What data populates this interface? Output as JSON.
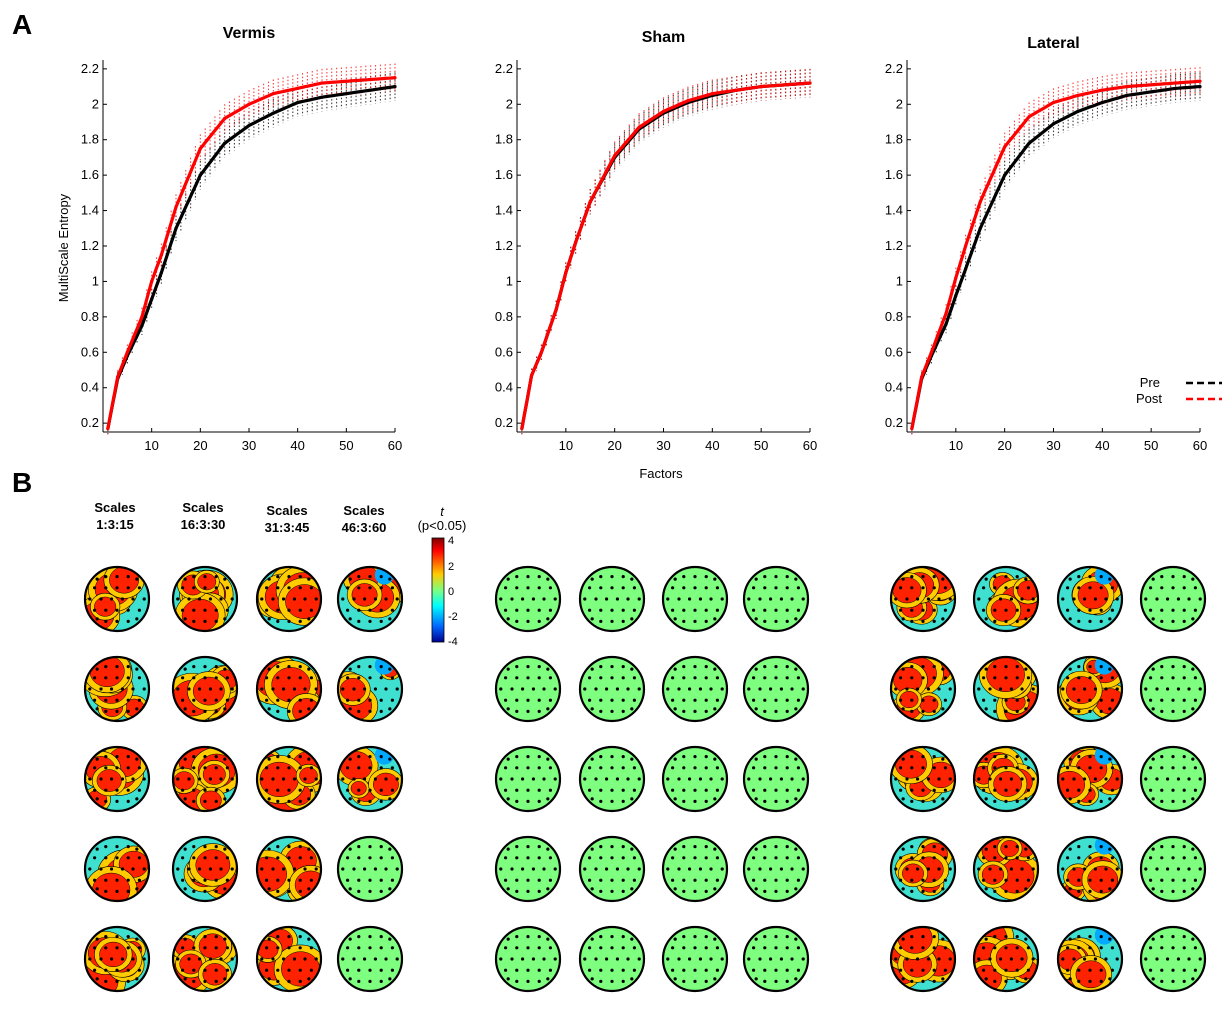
{
  "figure": {
    "panel_a_label": "A",
    "panel_b_label": "B",
    "xlabel": "Factors",
    "ylabel": "MultiScale Entropy",
    "x_ticks": [
      "10",
      "20",
      "30",
      "40",
      "50",
      "60"
    ],
    "y_ticks": [
      "0.2",
      "0.4",
      "0.6",
      "0.8",
      "1",
      "1.2",
      "1.4",
      "1.6",
      "1.8",
      "2",
      "2.2"
    ],
    "legend": {
      "pre": "Pre",
      "post": "Post"
    },
    "scale_headers": [
      {
        "line1": "Scales",
        "line2": "1:3:15"
      },
      {
        "line1": "Scales",
        "line2": "16:3:30"
      },
      {
        "line1": "Scales",
        "line2": "31:3:45"
      },
      {
        "line1": "Scales",
        "line2": "46:3:60"
      }
    ],
    "colorbar": {
      "title": "t",
      "subtitle": "(p<0.05)",
      "ticks": [
        "4",
        "2",
        "0",
        "-2",
        "-4"
      ],
      "range": [
        -4,
        4
      ]
    }
  },
  "colors": {
    "pre": "#000000",
    "post": "#ff0000",
    "topo_background": "#7fff7f",
    "topo_positive": "#ff2200",
    "topo_mid": "#ffcc00",
    "topo_zero": "#40e0d0",
    "topo_negative": "#00aaff"
  },
  "chart_data": [
    {
      "type": "line",
      "title": "Vermis",
      "xlabel": "",
      "ylabel": "MultiScale Entropy",
      "xlim": [
        0,
        60
      ],
      "ylim": [
        0.15,
        2.25
      ],
      "x": [
        1,
        3,
        5,
        8,
        10,
        12,
        15,
        20,
        25,
        30,
        35,
        40,
        45,
        50,
        55,
        60
      ],
      "series": [
        {
          "name": "Pre",
          "values": [
            0.17,
            0.45,
            0.58,
            0.75,
            0.9,
            1.05,
            1.3,
            1.6,
            1.78,
            1.88,
            1.95,
            2.01,
            2.04,
            2.06,
            2.08,
            2.1
          ]
        },
        {
          "name": "Post",
          "values": [
            0.17,
            0.46,
            0.6,
            0.8,
            1.0,
            1.15,
            1.42,
            1.75,
            1.92,
            2.0,
            2.06,
            2.09,
            2.12,
            2.13,
            2.14,
            2.15
          ]
        }
      ]
    },
    {
      "type": "line",
      "title": "Sham",
      "xlabel": "Factors",
      "ylabel": "",
      "xlim": [
        0,
        60
      ],
      "ylim": [
        0.15,
        2.25
      ],
      "x": [
        1,
        3,
        5,
        8,
        10,
        12,
        15,
        20,
        25,
        30,
        35,
        40,
        45,
        50,
        55,
        60
      ],
      "series": [
        {
          "name": "Pre",
          "values": [
            0.17,
            0.47,
            0.6,
            0.84,
            1.05,
            1.22,
            1.45,
            1.7,
            1.86,
            1.95,
            2.01,
            2.05,
            2.08,
            2.1,
            2.11,
            2.12
          ]
        },
        {
          "name": "Post",
          "values": [
            0.17,
            0.47,
            0.6,
            0.84,
            1.05,
            1.22,
            1.45,
            1.71,
            1.87,
            1.96,
            2.02,
            2.06,
            2.08,
            2.1,
            2.11,
            2.12
          ]
        }
      ]
    },
    {
      "type": "line",
      "title": "Lateral",
      "xlabel": "",
      "ylabel": "",
      "xlim": [
        0,
        60
      ],
      "ylim": [
        0.15,
        2.25
      ],
      "x": [
        1,
        3,
        5,
        8,
        10,
        12,
        15,
        20,
        25,
        30,
        35,
        40,
        45,
        50,
        55,
        60
      ],
      "series": [
        {
          "name": "Pre",
          "values": [
            0.17,
            0.45,
            0.58,
            0.76,
            0.92,
            1.07,
            1.3,
            1.6,
            1.78,
            1.89,
            1.96,
            2.01,
            2.05,
            2.07,
            2.09,
            2.1
          ]
        },
        {
          "name": "Post",
          "values": [
            0.17,
            0.46,
            0.6,
            0.82,
            1.02,
            1.2,
            1.45,
            1.76,
            1.93,
            2.01,
            2.05,
            2.08,
            2.1,
            2.11,
            2.12,
            2.13
          ]
        }
      ]
    }
  ],
  "topomaps": {
    "rows": 5,
    "columns_per_group": 4,
    "groups": [
      {
        "name": "Vermis",
        "activity": [
          [
            1,
            1,
            1,
            0.8
          ],
          [
            1,
            1,
            1,
            0.8
          ],
          [
            1,
            1,
            1,
            0.8
          ],
          [
            1,
            1,
            1,
            0
          ],
          [
            1,
            1,
            1,
            0
          ]
        ]
      },
      {
        "name": "Sham",
        "activity": [
          [
            0,
            0,
            0,
            0
          ],
          [
            0,
            0,
            0,
            0
          ],
          [
            0,
            0,
            0,
            0
          ],
          [
            0,
            0,
            0,
            0
          ],
          [
            0,
            0,
            0,
            0
          ]
        ]
      },
      {
        "name": "Lateral",
        "activity": [
          [
            1,
            1,
            0.8,
            0
          ],
          [
            1,
            1,
            0.8,
            0
          ],
          [
            1,
            1,
            0.8,
            0
          ],
          [
            1,
            1,
            0.8,
            0
          ],
          [
            1,
            1,
            0.8,
            0
          ]
        ]
      }
    ]
  }
}
